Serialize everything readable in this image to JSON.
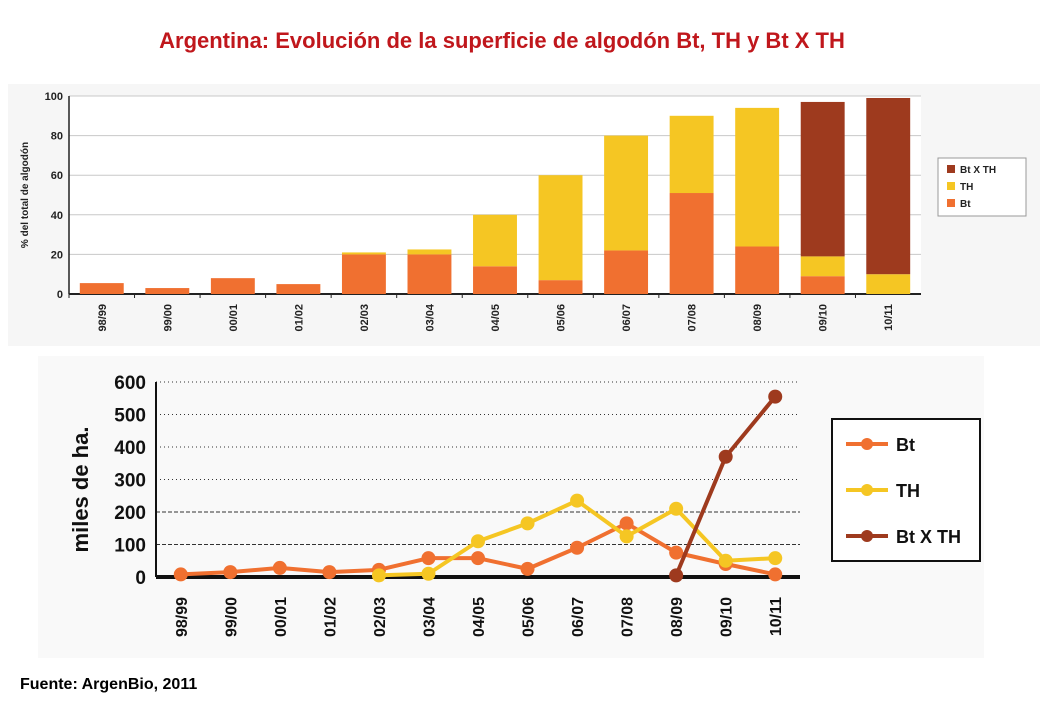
{
  "title": "Argentina: Evolución de la superficie de algodón Bt, TH y Bt X TH",
  "source": "Fuente: ArgenBio, 2011",
  "colors": {
    "bt": "#f07030",
    "th": "#f5c623",
    "btxth": "#9e3a1e",
    "title": "#c0171c"
  },
  "chart_data": [
    {
      "type": "bar",
      "stacked": true,
      "title": "",
      "xlabel": "",
      "ylabel": "% del total de algodón",
      "ylim": [
        0,
        100
      ],
      "yticks": [
        "0",
        "20",
        "40",
        "60",
        "80",
        "100"
      ],
      "grid": true,
      "legend_position": "right",
      "categories": [
        "98/99",
        "99/00",
        "00/01",
        "01/02",
        "02/03",
        "03/04",
        "04/05",
        "05/06",
        "06/07",
        "07/08",
        "08/09",
        "09/10",
        "10/11"
      ],
      "series": [
        {
          "name": "Bt",
          "values": [
            5.5,
            3,
            8,
            5,
            20,
            20,
            14,
            7,
            22,
            51,
            24,
            9,
            0
          ]
        },
        {
          "name": "TH",
          "values": [
            0,
            0,
            0,
            0,
            1,
            2.5,
            26,
            53,
            58,
            39,
            70,
            10,
            10
          ]
        },
        {
          "name": "Bt X TH",
          "values": [
            0,
            0,
            0,
            0,
            0,
            0,
            0,
            0,
            0,
            0,
            0,
            78,
            89
          ]
        }
      ],
      "legend_labels": [
        "Bt X TH",
        "TH",
        "Bt"
      ]
    },
    {
      "type": "line",
      "title": "",
      "xlabel": "",
      "ylabel": "miles de ha.",
      "ylim": [
        0,
        600
      ],
      "yticks": [
        "0",
        "100",
        "200",
        "300",
        "400",
        "500",
        "600"
      ],
      "grid": true,
      "legend_position": "right",
      "categories": [
        "98/99",
        "99/00",
        "00/01",
        "01/02",
        "02/03",
        "03/04",
        "04/05",
        "05/06",
        "06/07",
        "07/08",
        "08/09",
        "09/10",
        "10/11"
      ],
      "series": [
        {
          "name": "Bt",
          "values": [
            8,
            15,
            28,
            15,
            22,
            58,
            58,
            25,
            90,
            165,
            75,
            40,
            8
          ]
        },
        {
          "name": "TH",
          "values": [
            null,
            null,
            null,
            null,
            5,
            10,
            110,
            165,
            235,
            125,
            210,
            50,
            58
          ]
        },
        {
          "name": "Bt X TH",
          "values": [
            null,
            null,
            null,
            null,
            null,
            null,
            null,
            null,
            null,
            null,
            5,
            370,
            555
          ]
        }
      ]
    }
  ]
}
